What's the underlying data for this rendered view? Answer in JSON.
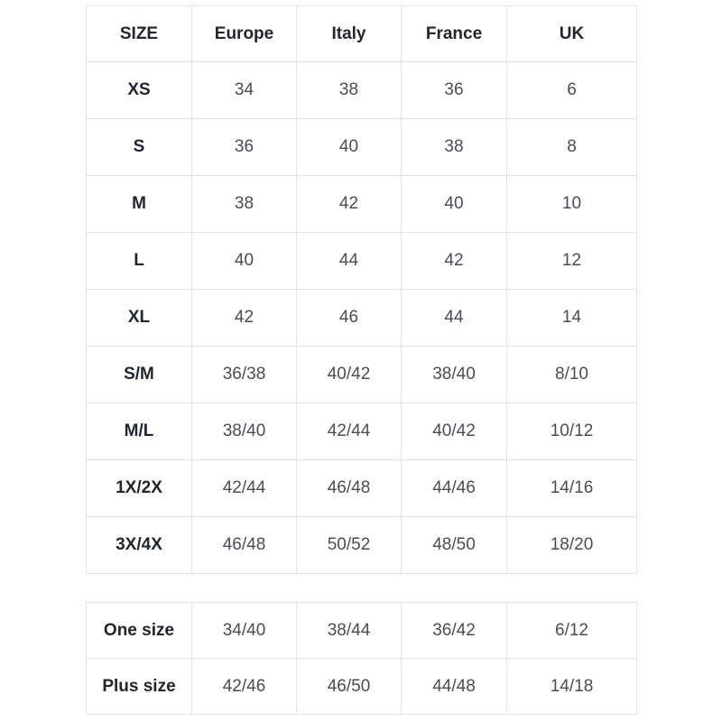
{
  "colors": {
    "background": "#ffffff",
    "border": "#e3e3e3",
    "header_text": "#23262e",
    "value_text": "#4a4d55"
  },
  "size_table": {
    "columns": [
      "SIZE",
      "Europe",
      "Italy",
      "France",
      "UK"
    ],
    "rows": [
      {
        "size": "XS",
        "values": [
          "34",
          "38",
          "36",
          "6"
        ]
      },
      {
        "size": "S",
        "values": [
          "36",
          "40",
          "38",
          "8"
        ]
      },
      {
        "size": "M",
        "values": [
          "38",
          "42",
          "40",
          "10"
        ]
      },
      {
        "size": "L",
        "values": [
          "40",
          "44",
          "42",
          "12"
        ]
      },
      {
        "size": "XL",
        "values": [
          "42",
          "46",
          "44",
          "14"
        ]
      },
      {
        "size": "S/M",
        "values": [
          "36/38",
          "40/42",
          "38/40",
          "8/10"
        ]
      },
      {
        "size": "M/L",
        "values": [
          "38/40",
          "42/44",
          "40/42",
          "10/12"
        ]
      },
      {
        "size": "1X/2X",
        "values": [
          "42/44",
          "46/48",
          "44/46",
          "14/16"
        ]
      },
      {
        "size": "3X/4X",
        "values": [
          "46/48",
          "50/52",
          "48/50",
          "18/20"
        ]
      }
    ]
  },
  "special_table": {
    "rows": [
      {
        "size": "One size",
        "values": [
          "34/40",
          "38/44",
          "36/42",
          "6/12"
        ]
      },
      {
        "size": "Plus size",
        "values": [
          "42/46",
          "46/50",
          "44/48",
          "14/18"
        ]
      }
    ]
  }
}
